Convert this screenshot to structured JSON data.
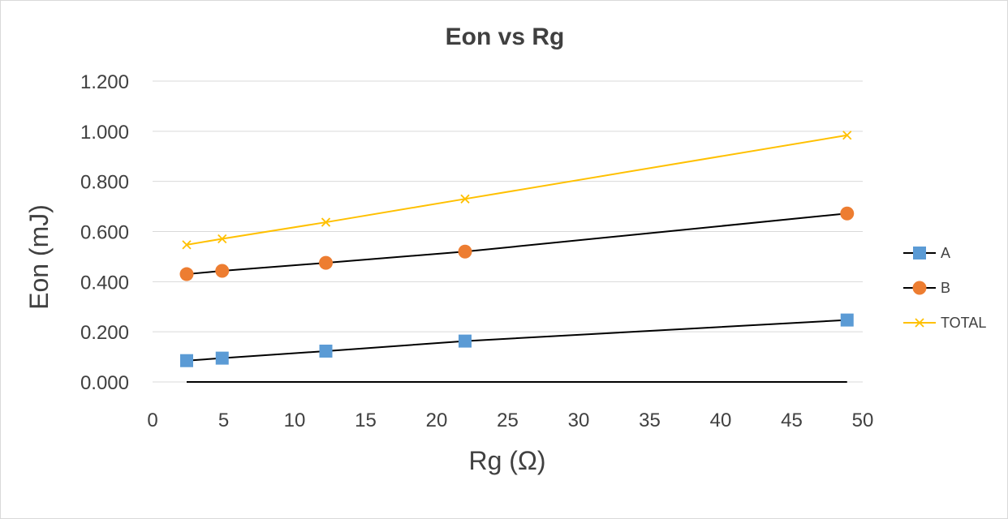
{
  "chart_data": {
    "type": "scatter",
    "title": "Eon vs Rg",
    "xlabel": "Rg (Ω)",
    "ylabel": "Eon (mJ)",
    "xlim": [
      0,
      50
    ],
    "ylim": [
      0,
      1.2
    ],
    "x_ticks": [
      "0",
      "5",
      "10",
      "15",
      "20",
      "25",
      "30",
      "35",
      "40",
      "45",
      "50"
    ],
    "y_ticks": [
      "0.000",
      "0.200",
      "0.400",
      "0.600",
      "0.800",
      "1.000",
      "1.200"
    ],
    "grid": "horizontal",
    "legend_position": "right",
    "series": [
      {
        "name": "A",
        "marker": "square",
        "color": "#5b9bd5",
        "line_color": "#000000",
        "x": [
          2.4,
          4.9,
          12.2,
          22,
          48.9
        ],
        "y": [
          0.085,
          0.095,
          0.123,
          0.163,
          0.247
        ]
      },
      {
        "name": "B",
        "marker": "circle",
        "color": "#ed7d31",
        "line_color": "#000000",
        "x": [
          2.4,
          4.9,
          12.2,
          22,
          48.9
        ],
        "y": [
          0.43,
          0.443,
          0.475,
          0.52,
          0.672
        ]
      },
      {
        "name": "TOTAL",
        "marker": "x",
        "color": "#ffc000",
        "line_color": "#ffc000",
        "x": [
          2.4,
          4.9,
          12.2,
          22,
          48.9
        ],
        "y": [
          0.547,
          0.571,
          0.637,
          0.73,
          0.984
        ]
      }
    ]
  }
}
